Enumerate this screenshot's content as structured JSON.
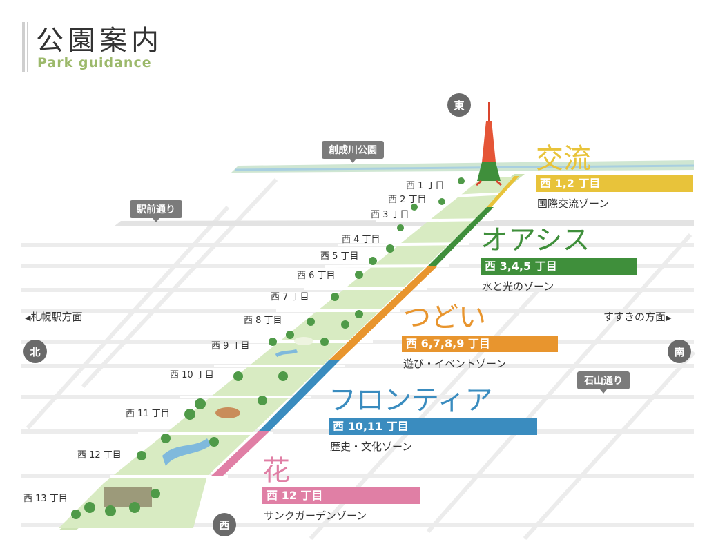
{
  "header": {
    "title": "公園案内",
    "subtitle": "Park guidance"
  },
  "street_tags": {
    "sosei": "創成川公園",
    "ekimae": "駅前通り",
    "ishiyama": "石山通り"
  },
  "compass": {
    "east": "東",
    "north": "北",
    "south": "南",
    "west": "西"
  },
  "directions": {
    "left": "札幌駅方面",
    "right": "すすきの方面"
  },
  "blocks": [
    "西 1 丁目",
    "西 2 丁目",
    "西 3 丁目",
    "西 4 丁目",
    "西 5 丁目",
    "西 6 丁目",
    "西 7 丁目",
    "西 8 丁目",
    "西 9 丁目",
    "西 10 丁目",
    "西 11 丁目",
    "西 12 丁目",
    "西 13 丁目"
  ],
  "zones": [
    {
      "name": "交流",
      "blocks": "西 1,2 丁目",
      "desc": "国際交流ゾーン",
      "color": "#e8c33a"
    },
    {
      "name": "オアシス",
      "blocks": "西 3,4,5 丁目",
      "desc": "水と光のゾーン",
      "color": "#3f8f3b"
    },
    {
      "name": "つどい",
      "blocks": "西 6,7,8,9 丁目",
      "desc": "遊び・イベントゾーン",
      "color": "#e8952e"
    },
    {
      "name": "フロンティア",
      "blocks": "西 10,11 丁目",
      "desc": "歴史・文化ゾーン",
      "color": "#3a8cbf"
    },
    {
      "name": "花",
      "blocks": "西 12 丁目",
      "desc": "サンクガーデンゾーン",
      "color": "#e07fa5"
    }
  ]
}
